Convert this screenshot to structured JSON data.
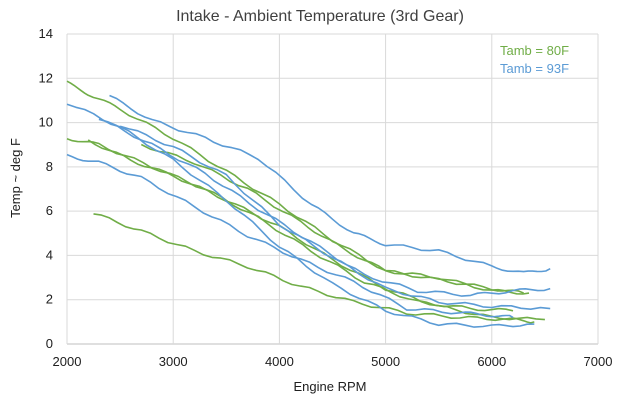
{
  "chart_data": {
    "type": "line",
    "title": "Intake - Ambient Temperature (3rd Gear)",
    "xlabel": "Engine RPM",
    "ylabel": "Temp ~ deg F",
    "xlim": [
      2000,
      7000
    ],
    "ylim": [
      0,
      14
    ],
    "xticks": [
      2000,
      3000,
      4000,
      5000,
      6000,
      7000
    ],
    "yticks": [
      0,
      2,
      4,
      6,
      8,
      10,
      12,
      14
    ],
    "grid": true,
    "legend_position": "top-right",
    "legend": [
      {
        "label": "Tamb = 80F",
        "color": "#70ad47"
      },
      {
        "label": "Tamb = 93F",
        "color": "#5b9bd5"
      }
    ],
    "series": [
      {
        "group": "Tamb = 80F",
        "color": "#70ad47",
        "points": [
          [
            2000,
            11.8
          ],
          [
            2200,
            11.3
          ],
          [
            2500,
            10.6
          ],
          [
            3000,
            9.3
          ],
          [
            3500,
            7.8
          ],
          [
            4000,
            6.3
          ],
          [
            4500,
            4.7
          ],
          [
            5000,
            3.3
          ],
          [
            5500,
            2.9
          ],
          [
            6000,
            2.5
          ],
          [
            6300,
            2.3
          ]
        ]
      },
      {
        "group": "Tamb = 80F",
        "color": "#70ad47",
        "points": [
          [
            2000,
            9.3
          ],
          [
            2300,
            9.0
          ],
          [
            2800,
            8.0
          ],
          [
            3300,
            7.0
          ],
          [
            3800,
            5.7
          ],
          [
            4300,
            4.2
          ],
          [
            4800,
            2.8
          ],
          [
            5300,
            1.9
          ],
          [
            5800,
            1.6
          ],
          [
            6200,
            1.5
          ]
        ]
      },
      {
        "group": "Tamb = 80F",
        "color": "#70ad47",
        "points": [
          [
            2200,
            9.2
          ],
          [
            2600,
            8.3
          ],
          [
            3000,
            7.6
          ],
          [
            3500,
            6.5
          ],
          [
            4000,
            5.3
          ],
          [
            4500,
            3.8
          ],
          [
            5000,
            2.5
          ],
          [
            5500,
            1.7
          ],
          [
            6000,
            1.2
          ],
          [
            6500,
            1.1
          ]
        ]
      },
      {
        "group": "Tamb = 80F",
        "color": "#70ad47",
        "points": [
          [
            2250,
            5.9
          ],
          [
            2700,
            5.1
          ],
          [
            3200,
            4.2
          ],
          [
            3700,
            3.5
          ],
          [
            4200,
            2.6
          ],
          [
            4700,
            1.9
          ],
          [
            5200,
            1.4
          ],
          [
            5700,
            1.2
          ],
          [
            6200,
            1.1
          ],
          [
            6400,
            1.0
          ]
        ]
      },
      {
        "group": "Tamb = 80F",
        "color": "#70ad47",
        "points": [
          [
            2700,
            9.0
          ],
          [
            3200,
            8.2
          ],
          [
            3700,
            7.0
          ],
          [
            4200,
            5.5
          ],
          [
            4600,
            4.3
          ],
          [
            5000,
            3.3
          ],
          [
            5500,
            3.0
          ],
          [
            6000,
            2.4
          ],
          [
            6350,
            2.3
          ]
        ]
      },
      {
        "group": "Tamb = 93F",
        "color": "#5b9bd5",
        "points": [
          [
            2400,
            11.2
          ],
          [
            2800,
            10.1
          ],
          [
            3300,
            9.3
          ],
          [
            3800,
            8.4
          ],
          [
            4300,
            6.3
          ],
          [
            4700,
            5.0
          ],
          [
            5000,
            4.5
          ],
          [
            5500,
            4.2
          ],
          [
            6000,
            3.5
          ],
          [
            6300,
            3.2
          ],
          [
            6550,
            3.4
          ]
        ]
      },
      {
        "group": "Tamb = 93F",
        "color": "#5b9bd5",
        "points": [
          [
            2000,
            8.5
          ],
          [
            2300,
            8.2
          ],
          [
            2700,
            7.5
          ],
          [
            3200,
            6.2
          ],
          [
            3700,
            4.9
          ],
          [
            4200,
            3.8
          ],
          [
            4700,
            2.8
          ],
          [
            5200,
            1.6
          ],
          [
            5700,
            1.4
          ],
          [
            6000,
            1.3
          ],
          [
            6200,
            1.2
          ]
        ]
      },
      {
        "group": "Tamb = 93F",
        "color": "#5b9bd5",
        "points": [
          [
            2000,
            10.9
          ],
          [
            2500,
            9.8
          ],
          [
            3000,
            8.3
          ],
          [
            3500,
            6.5
          ],
          [
            4000,
            4.4
          ],
          [
            4500,
            2.7
          ],
          [
            5000,
            1.5
          ],
          [
            5500,
            0.9
          ],
          [
            6000,
            0.8
          ],
          [
            6400,
            0.9
          ]
        ]
      },
      {
        "group": "Tamb = 93F",
        "color": "#5b9bd5",
        "points": [
          [
            2300,
            10.2
          ],
          [
            2800,
            9.0
          ],
          [
            3300,
            7.7
          ],
          [
            3800,
            6.1
          ],
          [
            4300,
            4.6
          ],
          [
            4800,
            3.1
          ],
          [
            5300,
            2.4
          ],
          [
            5800,
            2.2
          ],
          [
            6200,
            2.4
          ],
          [
            6550,
            2.5
          ]
        ]
      },
      {
        "group": "Tamb = 93F",
        "color": "#5b9bd5",
        "points": [
          [
            2500,
            9.9
          ],
          [
            3000,
            8.9
          ],
          [
            3500,
            7.6
          ],
          [
            4000,
            5.4
          ],
          [
            4500,
            3.9
          ],
          [
            5000,
            2.5
          ],
          [
            5500,
            1.9
          ],
          [
            6000,
            1.7
          ],
          [
            6550,
            1.6
          ]
        ]
      }
    ]
  }
}
